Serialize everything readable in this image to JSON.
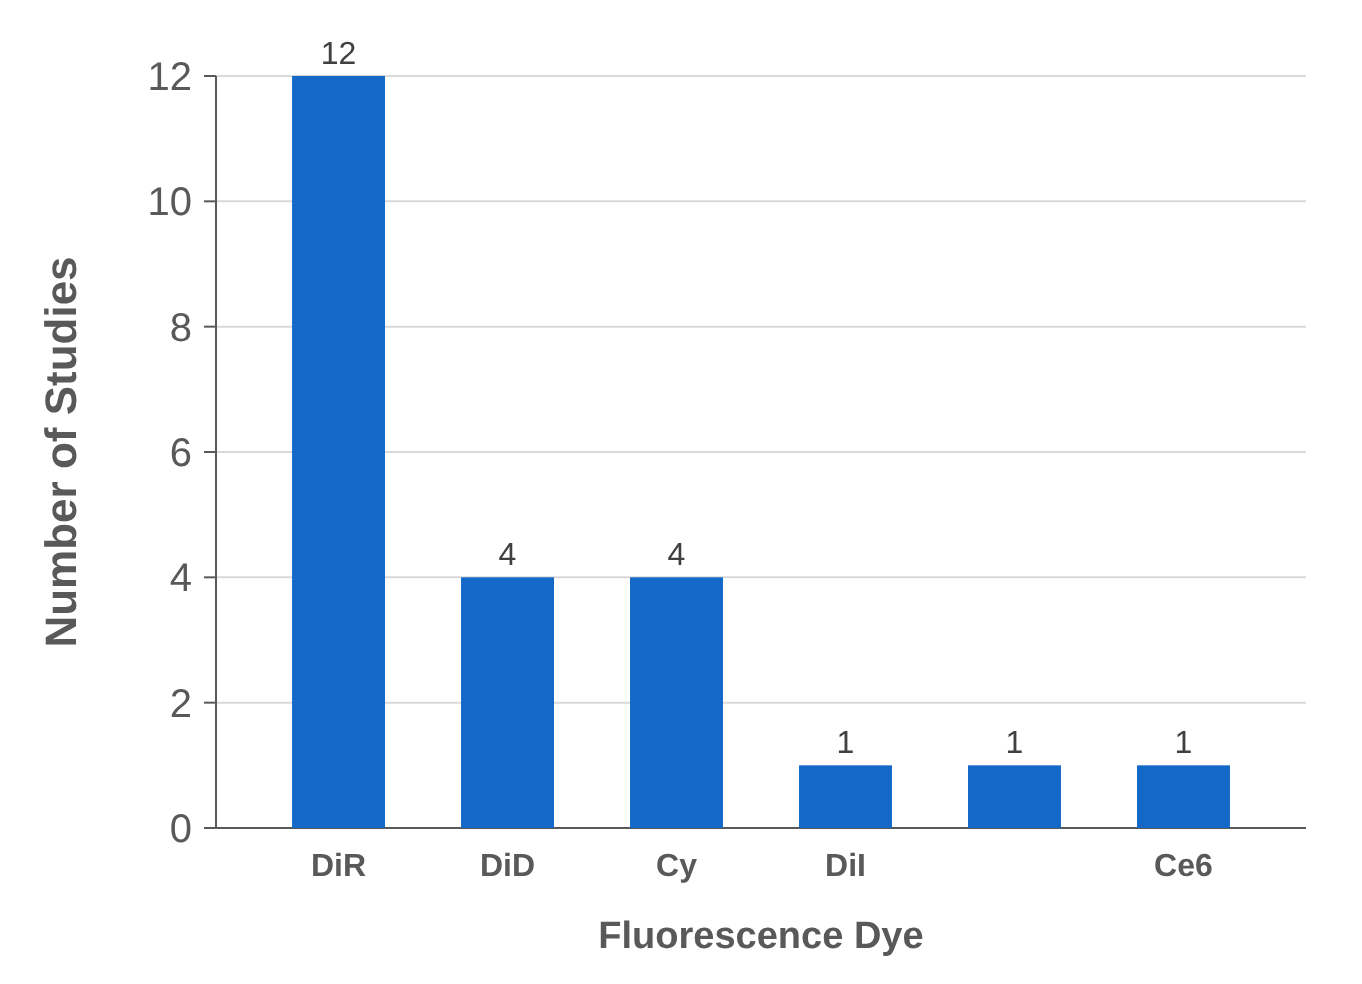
{
  "chart_data": {
    "type": "bar",
    "xlabel": "Fluorescence Dye",
    "ylabel": "Number of Studies",
    "categories": [
      "DiR",
      "DiD",
      "Cy",
      "DiI",
      null,
      "Ce6"
    ],
    "values": [
      12,
      4,
      4,
      1,
      1,
      1
    ],
    "color": "#1468c8",
    "ylim": [
      0,
      12
    ],
    "yticks": [
      0,
      2,
      4,
      6,
      8,
      10,
      12
    ],
    "grid": "y",
    "data_labels": true
  }
}
